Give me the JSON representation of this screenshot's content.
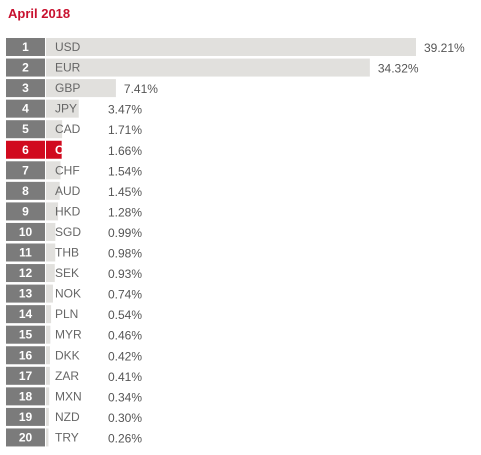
{
  "header": {
    "title": "April 2018"
  },
  "chart_data": {
    "type": "bar",
    "title": "April 2018",
    "orientation": "horizontal",
    "xlabel": "",
    "ylabel": "",
    "xlim": [
      0,
      39.21
    ],
    "grid": false,
    "legend": "none",
    "highlight": "CNY",
    "colors": {
      "bar": "#e1e0dd",
      "rank_box": "#7b7b7b",
      "highlight": "#d10a1e",
      "highlight_text": "#ffffff",
      "label_text": "#666666",
      "value_text": "#555555",
      "title": "#c8102e"
    },
    "ranks": [
      "1",
      "2",
      "3",
      "4",
      "5",
      "6",
      "7",
      "8",
      "9",
      "10",
      "11",
      "12",
      "13",
      "14",
      "15",
      "16",
      "17",
      "18",
      "19",
      "20"
    ],
    "categories": [
      "USD",
      "EUR",
      "GBP",
      "JPY",
      "CAD",
      "CNY",
      "CHF",
      "AUD",
      "HKD",
      "SGD",
      "THB",
      "SEK",
      "NOK",
      "PLN",
      "MYR",
      "DKK",
      "ZAR",
      "MXN",
      "NZD",
      "TRY"
    ],
    "values": [
      39.21,
      34.32,
      7.41,
      3.47,
      1.71,
      1.66,
      1.54,
      1.45,
      1.28,
      0.99,
      0.98,
      0.93,
      0.74,
      0.54,
      0.46,
      0.42,
      0.41,
      0.34,
      0.3,
      0.26
    ],
    "value_labels": [
      "39.21%",
      "34.32%",
      "7.41%",
      "3.47%",
      "1.71%",
      "1.66%",
      "1.54%",
      "1.45%",
      "1.28%",
      "0.99%",
      "0.98%",
      "0.93%",
      "0.74%",
      "0.54%",
      "0.46%",
      "0.42%",
      "0.41%",
      "0.34%",
      "0.30%",
      "0.26%"
    ]
  }
}
